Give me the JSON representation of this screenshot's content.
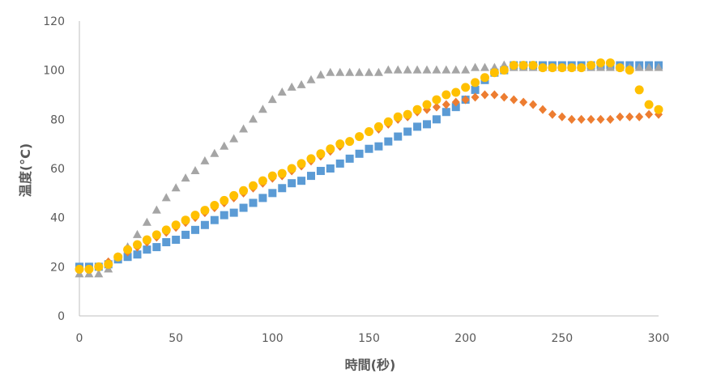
{
  "chart_data": {
    "type": "scatter",
    "title": "",
    "xlabel": "時間(秒)",
    "ylabel": "温度(°C)",
    "xlim": [
      0,
      300
    ],
    "ylim": [
      0,
      120
    ],
    "xticks": [
      0,
      50,
      100,
      150,
      200,
      250,
      300
    ],
    "yticks": [
      0,
      20,
      40,
      60,
      80,
      100,
      120
    ],
    "grid": false,
    "legend": "none",
    "x": [
      0,
      5,
      10,
      15,
      20,
      25,
      30,
      35,
      40,
      45,
      50,
      55,
      60,
      65,
      70,
      75,
      80,
      85,
      90,
      95,
      100,
      105,
      110,
      115,
      120,
      125,
      130,
      135,
      140,
      145,
      150,
      155,
      160,
      165,
      170,
      175,
      180,
      185,
      190,
      195,
      200,
      205,
      210,
      215,
      220,
      225,
      230,
      235,
      240,
      245,
      250,
      255,
      260,
      265,
      270,
      275,
      280,
      285,
      290,
      295,
      300
    ],
    "series": [
      {
        "color": "#5B9BD5",
        "marker": "square",
        "values": [
          20,
          20,
          20,
          21,
          23,
          24,
          25,
          27,
          28,
          30,
          31,
          33,
          35,
          37,
          39,
          41,
          42,
          44,
          46,
          48,
          50,
          52,
          54,
          55,
          57,
          59,
          60,
          62,
          64,
          66,
          68,
          69,
          71,
          73,
          75,
          77,
          78,
          80,
          83,
          85,
          88,
          92,
          96,
          99,
          100,
          102,
          102,
          102,
          102,
          102,
          102,
          102,
          102,
          102,
          102,
          102,
          102,
          102,
          102,
          102,
          102
        ]
      },
      {
        "color": "#ED7D31",
        "marker": "diamond",
        "values": [
          19,
          19,
          20,
          22,
          24,
          26,
          28,
          30,
          32,
          34,
          36,
          38,
          40,
          42,
          44,
          46,
          48,
          50,
          52,
          54,
          56,
          57,
          59,
          61,
          63,
          65,
          67,
          69,
          71,
          73,
          75,
          76,
          78,
          80,
          81,
          83,
          84,
          85,
          86,
          87,
          88,
          89,
          90,
          90,
          89,
          88,
          87,
          86,
          84,
          82,
          81,
          80,
          80,
          80,
          80,
          80,
          81,
          81,
          81,
          82,
          82
        ]
      },
      {
        "color": "#A5A5A5",
        "marker": "triangle",
        "values": [
          17,
          17,
          17,
          19,
          24,
          28,
          33,
          38,
          43,
          48,
          52,
          56,
          59,
          63,
          66,
          69,
          72,
          76,
          80,
          84,
          88,
          91,
          93,
          94,
          96,
          98,
          99,
          99,
          99,
          99,
          99,
          99,
          100,
          100,
          100,
          100,
          100,
          100,
          100,
          100,
          100,
          101,
          101,
          101,
          102,
          101,
          101,
          101,
          101,
          101,
          101,
          101,
          101,
          101,
          101,
          101,
          101,
          101,
          101,
          101,
          101
        ]
      },
      {
        "color": "#FFC000",
        "marker": "circle",
        "values": [
          19,
          19,
          20,
          21,
          24,
          27,
          29,
          31,
          33,
          35,
          37,
          39,
          41,
          43,
          45,
          47,
          49,
          51,
          53,
          55,
          57,
          58,
          60,
          62,
          64,
          66,
          68,
          70,
          71,
          73,
          75,
          77,
          79,
          81,
          82,
          84,
          86,
          88,
          90,
          91,
          93,
          95,
          97,
          99,
          100,
          102,
          102,
          102,
          101,
          101,
          101,
          101,
          101,
          102,
          103,
          103,
          101,
          100,
          92,
          86,
          84
        ]
      }
    ]
  }
}
